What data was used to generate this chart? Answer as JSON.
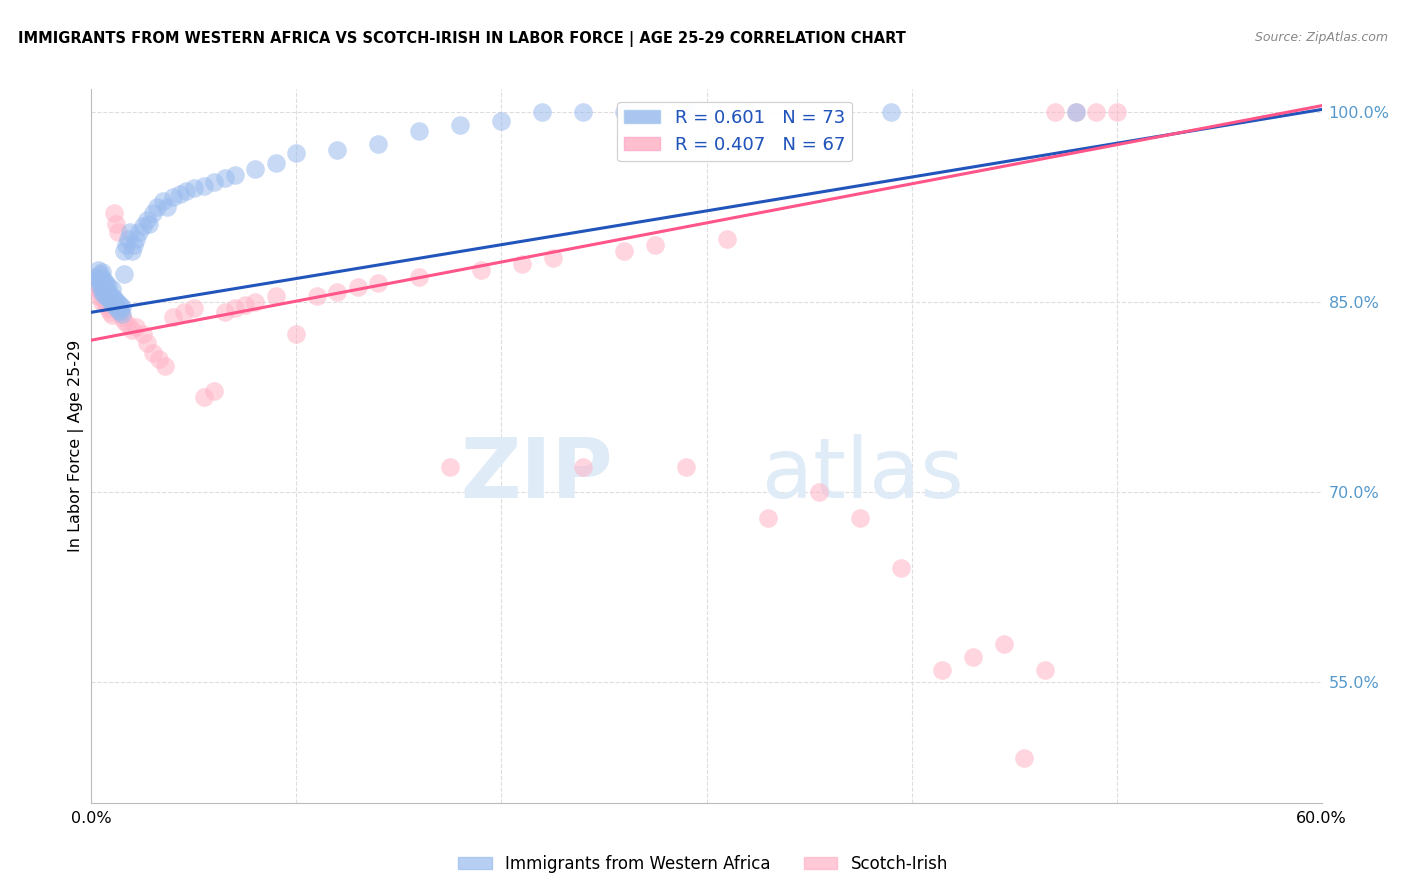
{
  "title": "IMMIGRANTS FROM WESTERN AFRICA VS SCOTCH-IRISH IN LABOR FORCE | AGE 25-29 CORRELATION CHART",
  "source": "Source: ZipAtlas.com",
  "ylabel": "In Labor Force | Age 25-29",
  "xmin": 0.0,
  "xmax": 0.6,
  "ymin": 0.455,
  "ymax": 1.018,
  "yticks": [
    1.0,
    0.85,
    0.7,
    0.55
  ],
  "ytick_labels": [
    "100.0%",
    "85.0%",
    "70.0%",
    "55.0%"
  ],
  "xtick_positions": [
    0.0,
    0.1,
    0.2,
    0.3,
    0.4,
    0.5,
    0.6
  ],
  "xtick_labels": [
    "0.0%",
    "",
    "",
    "",
    "",
    "",
    "60.0%"
  ],
  "legend_bottom": [
    "Immigrants from Western Africa",
    "Scotch-Irish"
  ],
  "blue_R": 0.601,
  "blue_N": 73,
  "pink_R": 0.407,
  "pink_N": 67,
  "blue_color": "#99BBEE",
  "pink_color": "#FFB3C6",
  "trendline_blue": "#2255BB",
  "trendline_pink": "#FF5588",
  "watermark_color": "#E0EBF8",
  "grid_color": "#DDDDDD",
  "right_tick_color": "#5599CC",
  "blue_trend_x0": 0.0,
  "blue_trend_y0": 0.842,
  "blue_trend_x1": 0.6,
  "blue_trend_y1": 1.002,
  "pink_trend_x0": 0.0,
  "pink_trend_y0": 0.82,
  "pink_trend_x1": 0.6,
  "pink_trend_y1": 1.005,
  "blue_x": [
    0.002,
    0.003,
    0.003,
    0.004,
    0.004,
    0.004,
    0.005,
    0.005,
    0.005,
    0.005,
    0.006,
    0.006,
    0.006,
    0.007,
    0.007,
    0.007,
    0.008,
    0.008,
    0.008,
    0.009,
    0.009,
    0.01,
    0.01,
    0.01,
    0.011,
    0.011,
    0.012,
    0.012,
    0.013,
    0.013,
    0.014,
    0.014,
    0.015,
    0.015,
    0.016,
    0.016,
    0.017,
    0.018,
    0.019,
    0.02,
    0.021,
    0.022,
    0.023,
    0.025,
    0.027,
    0.028,
    0.03,
    0.032,
    0.035,
    0.037,
    0.04,
    0.043,
    0.046,
    0.05,
    0.055,
    0.06,
    0.065,
    0.07,
    0.08,
    0.09,
    0.1,
    0.12,
    0.14,
    0.16,
    0.18,
    0.2,
    0.22,
    0.24,
    0.26,
    0.29,
    0.32,
    0.39,
    0.48
  ],
  "blue_y": [
    0.87,
    0.868,
    0.875,
    0.862,
    0.866,
    0.872,
    0.858,
    0.863,
    0.869,
    0.874,
    0.856,
    0.861,
    0.867,
    0.855,
    0.86,
    0.865,
    0.853,
    0.858,
    0.863,
    0.851,
    0.856,
    0.849,
    0.854,
    0.86,
    0.848,
    0.853,
    0.846,
    0.851,
    0.844,
    0.849,
    0.843,
    0.848,
    0.841,
    0.846,
    0.872,
    0.89,
    0.895,
    0.9,
    0.905,
    0.89,
    0.895,
    0.9,
    0.905,
    0.91,
    0.915,
    0.912,
    0.92,
    0.925,
    0.93,
    0.925,
    0.933,
    0.935,
    0.938,
    0.94,
    0.942,
    0.945,
    0.948,
    0.95,
    0.955,
    0.96,
    0.968,
    0.97,
    0.975,
    0.985,
    0.99,
    0.993,
    1.0,
    1.0,
    1.0,
    1.0,
    1.0,
    1.0,
    1.0
  ],
  "pink_x": [
    0.002,
    0.003,
    0.003,
    0.004,
    0.005,
    0.005,
    0.006,
    0.006,
    0.007,
    0.007,
    0.008,
    0.008,
    0.009,
    0.01,
    0.01,
    0.011,
    0.012,
    0.013,
    0.014,
    0.015,
    0.016,
    0.018,
    0.02,
    0.022,
    0.025,
    0.027,
    0.03,
    0.033,
    0.036,
    0.04,
    0.045,
    0.05,
    0.055,
    0.06,
    0.065,
    0.07,
    0.075,
    0.08,
    0.09,
    0.1,
    0.11,
    0.12,
    0.13,
    0.14,
    0.16,
    0.175,
    0.19,
    0.21,
    0.225,
    0.24,
    0.26,
    0.275,
    0.29,
    0.31,
    0.33,
    0.355,
    0.375,
    0.395,
    0.415,
    0.43,
    0.445,
    0.455,
    0.465,
    0.47,
    0.48,
    0.49,
    0.5
  ],
  "pink_y": [
    0.862,
    0.855,
    0.863,
    0.858,
    0.85,
    0.859,
    0.852,
    0.86,
    0.848,
    0.856,
    0.845,
    0.852,
    0.842,
    0.84,
    0.85,
    0.92,
    0.912,
    0.905,
    0.842,
    0.838,
    0.835,
    0.832,
    0.828,
    0.83,
    0.825,
    0.818,
    0.81,
    0.805,
    0.8,
    0.838,
    0.842,
    0.845,
    0.775,
    0.78,
    0.842,
    0.845,
    0.848,
    0.85,
    0.855,
    0.825,
    0.855,
    0.858,
    0.862,
    0.865,
    0.87,
    0.72,
    0.875,
    0.88,
    0.885,
    0.72,
    0.89,
    0.895,
    0.72,
    0.9,
    0.68,
    0.7,
    0.68,
    0.64,
    0.56,
    0.57,
    0.58,
    0.49,
    0.56,
    1.0,
    1.0,
    1.0,
    1.0
  ]
}
